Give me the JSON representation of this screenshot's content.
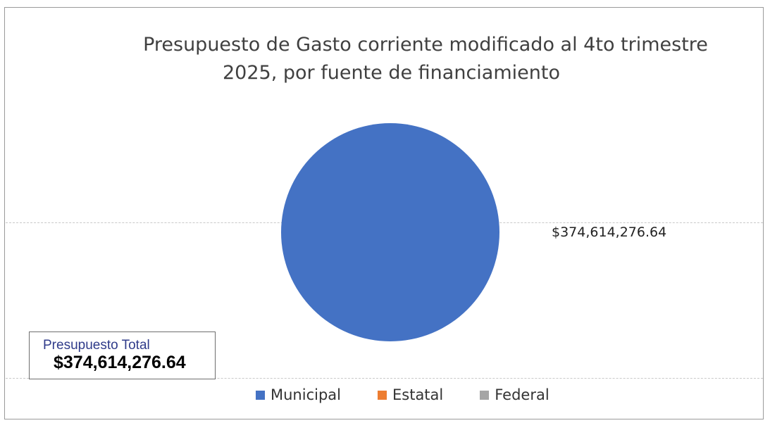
{
  "chart_data": {
    "type": "pie",
    "title": "Presupuesto de Gasto corriente modificado al 4to trimestre 2025, por fuente de financiamiento",
    "title_lines": [
      "Presupuesto de Gasto corriente modificado al 4to trimestre",
      "2025, por fuente de financiamiento"
    ],
    "categories": [
      "Municipal",
      "Estatal",
      "Federal"
    ],
    "values": [
      374614276.64,
      0,
      0
    ],
    "colors": [
      "#4472c4",
      "#ed7d31",
      "#a5a5a5"
    ],
    "data_labels": [
      "$374,614,276.64"
    ],
    "legend_position": "bottom",
    "legend": [
      {
        "label": "Municipal",
        "color": "#4472c4"
      },
      {
        "label": "Estatal",
        "color": "#ed7d31"
      },
      {
        "label": "Federal",
        "color": "#a5a5a5"
      }
    ]
  },
  "total_box": {
    "label": "Presupuesto Total",
    "value": "$374,614,276.64"
  }
}
